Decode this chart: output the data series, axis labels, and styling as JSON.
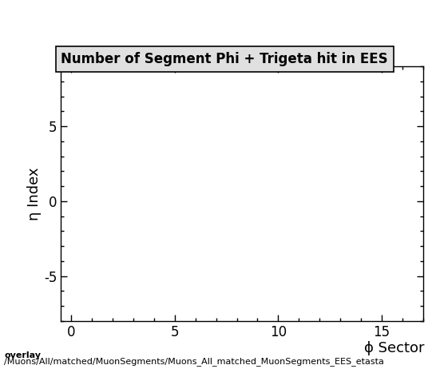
{
  "title": "Number of Segment Phi + Trigeta hit in EES",
  "xlabel": "ϕ Sector",
  "ylabel": "η Index",
  "xlim": [
    -0.5,
    17
  ],
  "ylim": [
    -8,
    9
  ],
  "xticks": [
    0,
    5,
    10,
    15
  ],
  "yticks": [
    -5,
    0,
    5
  ],
  "background_color": "#ffffff",
  "plot_bg_color": "#ffffff",
  "footer_line1": "overlay",
  "footer_line2": "/Muons/All/matched/MuonSegments/Muons_All_matched_MuonSegments_EES_etasta",
  "title_fontsize": 12,
  "axis_label_fontsize": 13,
  "tick_fontsize": 12,
  "footer_fontsize": 8
}
